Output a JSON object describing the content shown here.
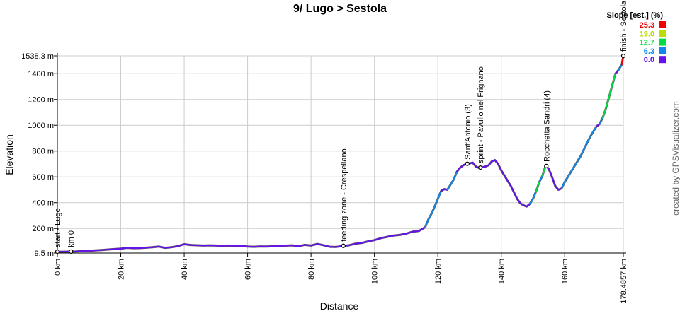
{
  "chart_data": {
    "type": "area",
    "title": "9/ Lugo > Sestola",
    "xlabel": "Distance",
    "ylabel": "Elevation",
    "xlim": [
      0,
      178.4857
    ],
    "ylim": [
      9.5,
      1538.3
    ],
    "x_ticks": [
      0,
      20,
      40,
      60,
      80,
      100,
      120,
      140,
      160,
      178.4857
    ],
    "x_tick_labels": [
      "0 km",
      "20 km",
      "40 km",
      "60 km",
      "80 km",
      "100 km",
      "120 km",
      "140 km",
      "160 km",
      "178.4857 km"
    ],
    "y_ticks": [
      9.5,
      200,
      400,
      600,
      800,
      1000,
      1200,
      1400,
      1538.3
    ],
    "y_tick_labels": [
      "9.5 m",
      "200 m",
      "400 m",
      "600 m",
      "800 m",
      "1000 m",
      "1200 m",
      "1400 m",
      "1538.3 m"
    ],
    "grid": true,
    "legend": {
      "title": "Slope [est.] (%)",
      "placement": "top-right",
      "entries": [
        {
          "label": "25.3",
          "color": "#ee0000"
        },
        {
          "label": "19.0",
          "color": "#bbdd00"
        },
        {
          "label": "12.7",
          "color": "#00dd44"
        },
        {
          "label": "6.3",
          "color": "#1188ee"
        },
        {
          "label": "0.0",
          "color": "#6611ee"
        }
      ]
    },
    "series": [
      {
        "x": [
          0,
          2,
          4,
          6,
          8,
          10,
          12,
          14,
          16,
          18,
          20,
          22,
          24,
          26,
          28,
          30,
          32,
          34,
          36,
          38,
          40,
          42,
          44,
          46,
          48,
          50,
          52,
          54,
          56,
          58,
          60,
          62,
          64,
          66,
          68,
          70,
          72,
          74,
          76,
          78,
          80,
          82,
          84,
          86,
          88,
          90,
          92,
          94,
          96,
          98,
          100,
          102,
          104,
          106,
          108,
          110,
          112,
          114,
          116,
          117,
          118,
          119,
          120,
          121,
          122,
          123,
          124,
          125,
          126,
          127,
          128,
          129,
          130,
          131,
          132,
          133,
          134,
          135,
          136,
          137,
          138,
          139,
          140,
          141,
          142,
          143,
          144,
          145,
          146,
          147,
          148,
          149,
          150,
          151,
          152,
          153,
          154,
          155,
          156,
          157,
          158,
          159,
          160,
          161,
          162,
          163,
          164,
          165,
          166,
          167,
          168,
          169,
          170,
          171,
          172,
          173,
          174,
          175,
          176,
          177,
          178,
          178.4857
        ],
        "y": [
          20,
          20,
          21,
          22,
          25,
          27,
          30,
          33,
          37,
          40,
          44,
          50,
          47,
          48,
          51,
          55,
          60,
          50,
          55,
          63,
          78,
          72,
          70,
          68,
          69,
          68,
          66,
          68,
          65,
          65,
          60,
          58,
          61,
          60,
          63,
          65,
          67,
          69,
          62,
          73,
          68,
          80,
          70,
          58,
          57,
          65,
          70,
          82,
          88,
          100,
          110,
          125,
          135,
          145,
          150,
          160,
          175,
          180,
          210,
          270,
          315,
          370,
          430,
          490,
          505,
          500,
          540,
          580,
          640,
          670,
          690,
          700,
          705,
          710,
          680,
          670,
          675,
          680,
          690,
          720,
          730,
          700,
          650,
          610,
          570,
          530,
          480,
          430,
          395,
          380,
          370,
          390,
          430,
          490,
          560,
          610,
          690,
          660,
          600,
          530,
          500,
          510,
          560,
          600,
          640,
          680,
          720,
          760,
          810,
          860,
          910,
          950,
          990,
          1010,
          1060,
          1130,
          1220,
          1310,
          1400,
          1430,
          1470,
          1538.3
        ]
      }
    ],
    "annotations": [
      {
        "x": 0,
        "label": "start - Lugo"
      },
      {
        "x": 4.3,
        "label": "km 0"
      },
      {
        "x": 90.2,
        "label": "feeding zone - Crespellano"
      },
      {
        "x": 129.3,
        "label": "Sant'Antonio (3)"
      },
      {
        "x": 133.4,
        "label": "sprint - Pavullo nel Frignano"
      },
      {
        "x": 154.2,
        "label": "Rocchetta Sandri (4)"
      },
      {
        "x": 178.4857,
        "label": "finish - Sestola"
      }
    ]
  },
  "watermark": "created by GPSVisualizer.com"
}
